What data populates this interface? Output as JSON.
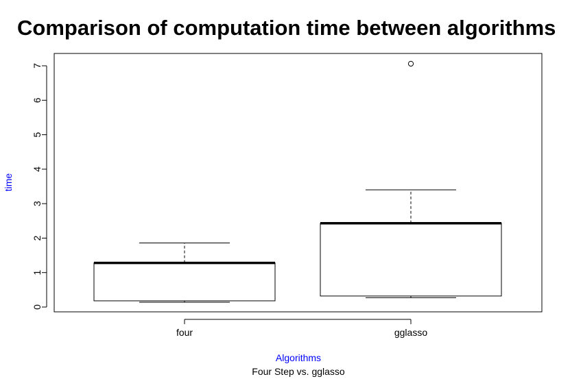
{
  "chart_data": {
    "type": "boxplot",
    "title": "Comparison of computation time between algorithms",
    "subtitle": "Four Step vs. gglasso",
    "xlabel": "Algorithms",
    "ylabel": "time",
    "label_color": "#0000ff",
    "categories": [
      "four",
      "gglasso"
    ],
    "y_ticks": [
      "0",
      "1",
      "2",
      "3",
      "4",
      "5",
      "6",
      "7"
    ],
    "ylim": [
      -0.1,
      7.35
    ],
    "boxes": [
      {
        "name": "four",
        "whisker_low": 0.14,
        "q1": 0.18,
        "median": 1.28,
        "q3": 1.28,
        "whisker_high": 1.86,
        "outliers": []
      },
      {
        "name": "gglasso",
        "whisker_low": 0.27,
        "q1": 0.32,
        "median": 2.43,
        "q3": 2.43,
        "whisker_high": 3.4,
        "outliers": [
          7.06
        ]
      }
    ]
  }
}
